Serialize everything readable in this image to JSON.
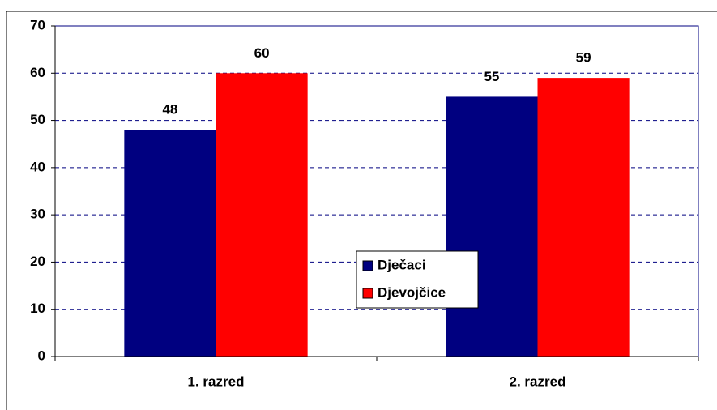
{
  "chart_data": {
    "type": "bar",
    "categories": [
      "1. razred",
      "2. razred"
    ],
    "series": [
      {
        "name": "Dječaci",
        "color": "#000080",
        "values": [
          48,
          55
        ]
      },
      {
        "name": "Djevojčice",
        "color": "#ff0000",
        "values": [
          60,
          59
        ]
      }
    ],
    "ylim": [
      0,
      70
    ],
    "yticks": [
      0,
      10,
      20,
      30,
      40,
      50,
      60,
      70
    ],
    "grid": true,
    "legend": "center"
  }
}
